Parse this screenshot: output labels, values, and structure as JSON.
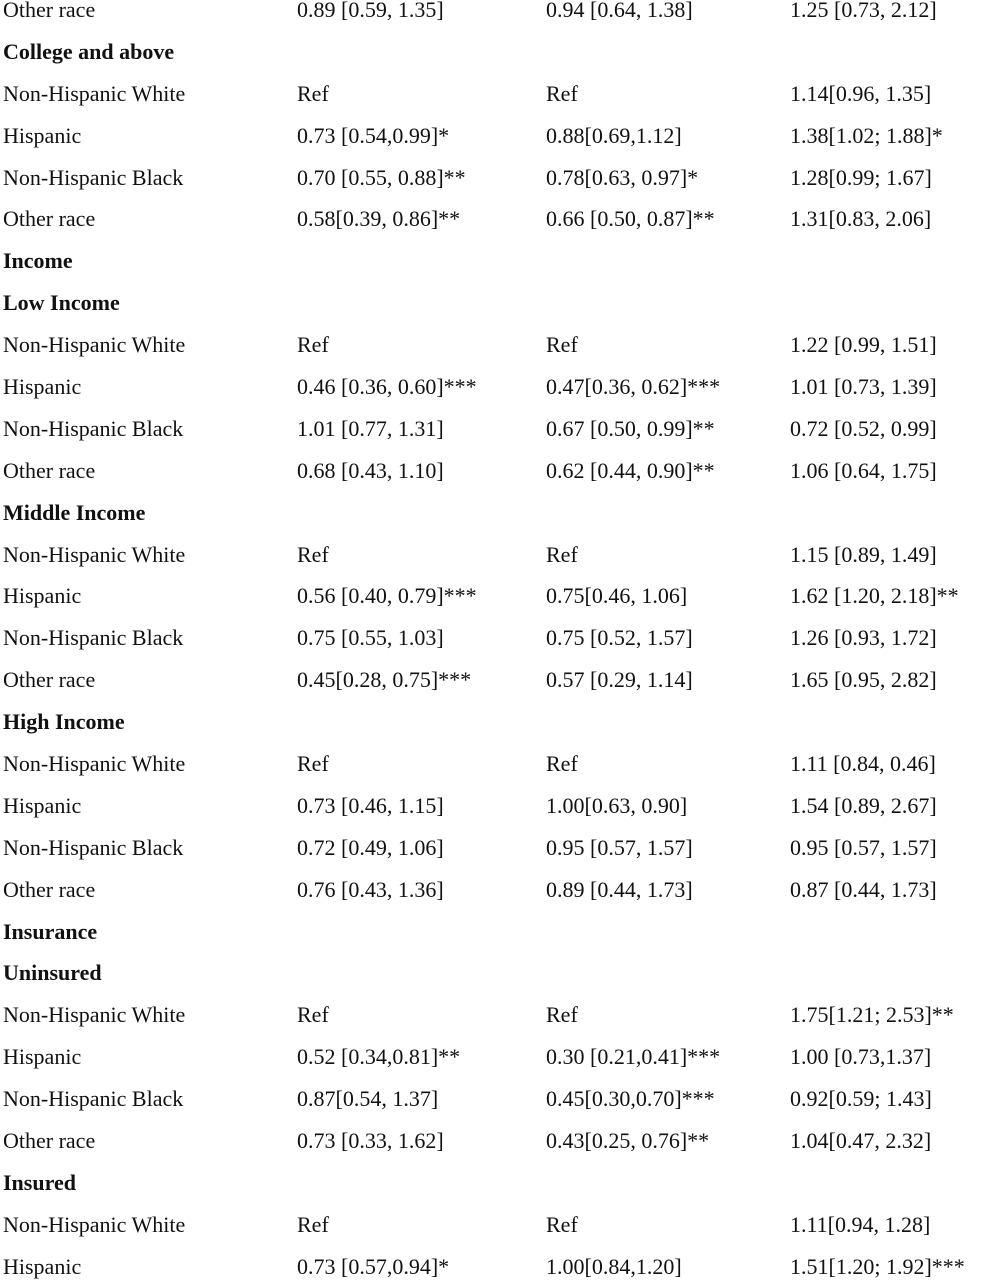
{
  "rows": [
    {
      "type": "data",
      "cells": [
        "Other race",
        "0.89 [0.59, 1.35]",
        "0.94 [0.64, 1.38]",
        "1.25 [0.73, 2.12]"
      ]
    },
    {
      "type": "heading",
      "cells": [
        "College and above"
      ]
    },
    {
      "type": "data",
      "cells": [
        "Non-Hispanic White",
        "Ref",
        "Ref",
        "1.14[0.96, 1.35]"
      ]
    },
    {
      "type": "data",
      "cells": [
        "Hispanic",
        "0.73 [0.54,0.99]*",
        "0.88[0.69,1.12]",
        "1.38[1.02; 1.88]*"
      ]
    },
    {
      "type": "data",
      "cells": [
        "Non-Hispanic Black",
        "0.70 [0.55, 0.88]**",
        "0.78[0.63, 0.97]*",
        "1.28[0.99; 1.67]"
      ]
    },
    {
      "type": "data",
      "cells": [
        "Other race",
        "0.58[0.39, 0.86]**",
        "0.66 [0.50, 0.87]**",
        "1.31[0.83, 2.06]"
      ]
    },
    {
      "type": "heading",
      "cells": [
        "Income"
      ]
    },
    {
      "type": "heading",
      "cells": [
        "Low Income"
      ]
    },
    {
      "type": "data",
      "cells": [
        "Non-Hispanic White",
        "Ref",
        "Ref",
        "1.22 [0.99, 1.51]"
      ]
    },
    {
      "type": "data",
      "cells": [
        "Hispanic",
        "0.46 [0.36, 0.60]***",
        "0.47[0.36, 0.62]***",
        "1.01 [0.73, 1.39]"
      ]
    },
    {
      "type": "data",
      "cells": [
        "Non-Hispanic Black",
        "1.01 [0.77, 1.31]",
        "0.67 [0.50, 0.99]**",
        "0.72 [0.52, 0.99]"
      ]
    },
    {
      "type": "data",
      "cells": [
        "Other race",
        "0.68 [0.43, 1.10]",
        "0.62 [0.44, 0.90]**",
        "1.06  [0.64, 1.75]"
      ]
    },
    {
      "type": "heading",
      "cells": [
        "Middle Income"
      ]
    },
    {
      "type": "data",
      "cells": [
        "Non-Hispanic White",
        "Ref",
        "Ref",
        "1.15 [0.89, 1.49]"
      ]
    },
    {
      "type": "data",
      "cells": [
        "Hispanic",
        "0.56 [0.40, 0.79]***",
        "0.75[0.46, 1.06]",
        "1.62 [1.20, 2.18]**"
      ]
    },
    {
      "type": "data",
      "cells": [
        "Non-Hispanic Black",
        "0.75 [0.55, 1.03]",
        "0.75 [0.52, 1.57]",
        "1.26 [0.93, 1.72]"
      ]
    },
    {
      "type": "data",
      "cells": [
        "Other race",
        "0.45[0.28, 0.75]***",
        "0.57 [0.29, 1.14]",
        " 1.65 [0.95, 2.82]"
      ]
    },
    {
      "type": "heading",
      "cells": [
        "High Income"
      ]
    },
    {
      "type": "data",
      "cells": [
        "Non-Hispanic White",
        "Ref",
        "Ref",
        "1.11 [0.84, 0.46]"
      ]
    },
    {
      "type": "data",
      "cells": [
        "Hispanic",
        "0.73 [0.46, 1.15]",
        "1.00[0.63, 0.90]",
        "1.54 [0.89, 2.67]"
      ]
    },
    {
      "type": "data",
      "cells": [
        "Non-Hispanic Black",
        "0.72 [0.49, 1.06]",
        "0.95 [0.57, 1.57]",
        "0.95 [0.57, 1.57]"
      ]
    },
    {
      "type": "data",
      "cells": [
        "Other race",
        "0.76 [0.43, 1.36]",
        "0.89 [0.44, 1.73]",
        " 0.87 [0.44, 1.73]"
      ]
    },
    {
      "type": "heading",
      "cells": [
        "Insurance"
      ]
    },
    {
      "type": "heading",
      "cells": [
        "Uninsured"
      ]
    },
    {
      "type": "data",
      "cells": [
        "Non-Hispanic White",
        "Ref",
        "Ref",
        "1.75[1.21; 2.53]**"
      ]
    },
    {
      "type": "data",
      "cells": [
        "Hispanic",
        "0.52 [0.34,0.81]**",
        "0.30 [0.21,0.41]***",
        "1.00 [0.73,1.37]"
      ]
    },
    {
      "type": "data",
      "cells": [
        "Non-Hispanic Black",
        "0.87[0.54, 1.37]",
        "0.45[0.30,0.70]***",
        "0.92[0.59; 1.43]"
      ]
    },
    {
      "type": "data",
      "cells": [
        "Other race",
        "0.73 [0.33, 1.62]",
        "0.43[0.25, 0.76]**",
        "1.04[0.47, 2.32]"
      ]
    },
    {
      "type": "heading",
      "cells": [
        "Insured"
      ]
    },
    {
      "type": "data",
      "cells": [
        "Non-Hispanic White",
        "Ref",
        "Ref",
        "1.11[0.94, 1.28]"
      ]
    },
    {
      "type": "data",
      "cells": [
        "Hispanic",
        "0.73 [0.57,0.94]*",
        "1.00[0.84,1.20]",
        "1.51[1.20; 1.92]***"
      ]
    }
  ]
}
